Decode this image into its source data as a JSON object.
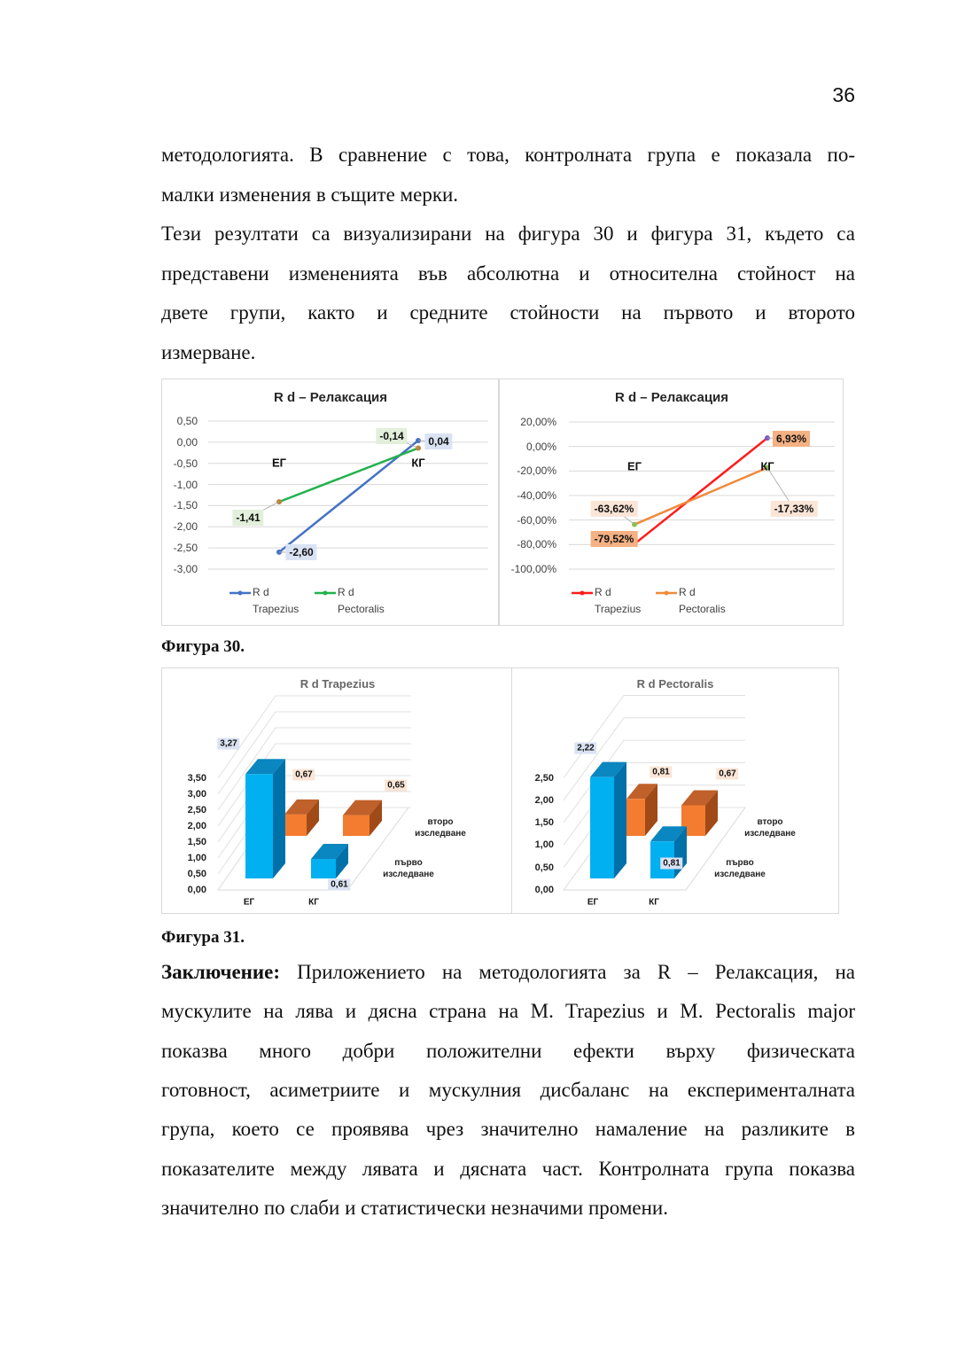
{
  "page_number": "36",
  "paragraph1": {
    "lines": [
      "методологията. В сравнение с това, контролната група е показала по-",
      "малки изменения в същите мерки."
    ]
  },
  "paragraph2": {
    "lines": [
      "Тези резултати са визуализирани на фигура 30 и фигура 31, където са",
      "представени измененията във абсолютна и относителна стойност на",
      "двете групи, както и средните стойности на първото и второто",
      "измерване."
    ]
  },
  "figure30_caption": "Фигура 30.",
  "figure31_caption": "Фигура 31.",
  "conclusion": {
    "label": "Заключение:",
    "first_line_rest": " Приложението на методологията за R – Релаксация, на",
    "lines": [
      "мускулите на лява и дясна страна на M. Trapezius и M. Pectoralis major",
      "показва много добри положителни ефекти върху физическата",
      "готовност, асиметриите и мускулния дисбаланс на експерименталната",
      "група, което се проявява чрез значително намаление на разликите в",
      "показателите между лявата и дясната част. Контролната група показва",
      "значително по слаби и статистически незначими промени."
    ]
  },
  "chart_data": [
    {
      "type": "line",
      "title": "R d – Релаксация",
      "categories": [
        "ЕГ",
        "КГ"
      ],
      "ylim": [
        -3,
        0.5
      ],
      "yticks": [
        "0,50",
        "0,00",
        "-0,50",
        "-1,00",
        "-1,50",
        "-2,00",
        "-2,50",
        "-3,00"
      ],
      "grid": true,
      "legend": "bottom",
      "series": [
        {
          "name": "R d Trapezius",
          "values": [
            -2.6,
            0.04
          ],
          "labels": [
            "-2,60",
            "0,04"
          ],
          "color": "#4472C4",
          "label_bg": "#DAE3F3"
        },
        {
          "name": "R d Pectoralis",
          "values": [
            -1.41,
            -0.14
          ],
          "labels": [
            "-1,41",
            "-0,14"
          ],
          "color": "#22B14C",
          "label_bg": "#E2EFDA"
        }
      ]
    },
    {
      "type": "line",
      "title": "R d – Релаксация",
      "categories": [
        "ЕГ",
        "КГ"
      ],
      "ylim": [
        -100,
        20
      ],
      "yticks": [
        "20,00%",
        "0,00%",
        "-20,00%",
        "-40,00%",
        "-60,00%",
        "-80,00%",
        "-100,00%"
      ],
      "grid": true,
      "legend": "bottom",
      "series": [
        {
          "name": "R d Trapezius",
          "values": [
            -79.52,
            6.93
          ],
          "labels": [
            "-79,52%",
            "6,93%"
          ],
          "color": "#FF1A1A",
          "label_bg": "#F4B183"
        },
        {
          "name": "R d Pectoralis",
          "values": [
            -63.62,
            -17.33
          ],
          "labels": [
            "-63,62%",
            "-17,33%"
          ],
          "color": "#F08A3C",
          "label_bg": "#FBE5D6"
        }
      ]
    },
    {
      "type": "bar",
      "title": "R d Trapezius",
      "categories": [
        "ЕГ",
        "КГ"
      ],
      "yticks": [
        "3,50",
        "3,00",
        "2,50",
        "2,00",
        "1,50",
        "1,00",
        "0,50",
        "0,00"
      ],
      "series": [
        {
          "name": "първо изследване",
          "values": [
            3.27,
            0.61
          ],
          "labels": [
            "3,27",
            "0,61"
          ],
          "color": "#00B0F0",
          "label_bg": "#DAE3F3"
        },
        {
          "name": "второ изследване",
          "values": [
            0.67,
            0.65
          ],
          "labels": [
            "0,67",
            "0,65"
          ],
          "color": "#F47C30",
          "label_bg": "#FBE5D6"
        }
      ]
    },
    {
      "type": "bar",
      "title": "R d Pectoralis",
      "categories": [
        "ЕГ",
        "КГ"
      ],
      "yticks": [
        "2,50",
        "2,00",
        "1,50",
        "1,00",
        "0,50",
        "0,00"
      ],
      "series": [
        {
          "name": "първо изследване",
          "values": [
            2.22,
            0.81
          ],
          "labels": [
            "2,22",
            "0,81"
          ],
          "color": "#00B0F0",
          "label_bg": "#DAE3F3"
        },
        {
          "name": "второ изследване",
          "values": [
            0.81,
            0.67
          ],
          "labels": [
            "0,81",
            "0,67"
          ],
          "color": "#F47C30",
          "label_bg": "#FBE5D6"
        }
      ]
    }
  ]
}
